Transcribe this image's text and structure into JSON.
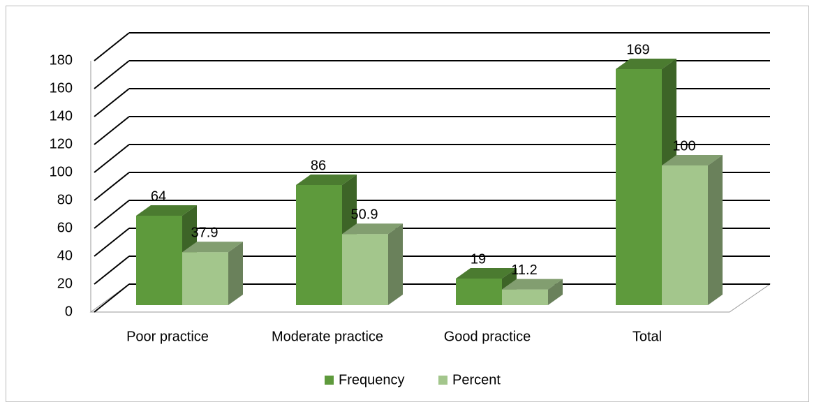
{
  "chart_data": {
    "type": "bar3d",
    "categories": [
      "Poor practice",
      "Moderate practice",
      "Good practice",
      "Total"
    ],
    "series": [
      {
        "name": "Frequency",
        "color": "#5e9a3c",
        "values": [
          64,
          86,
          19,
          169
        ]
      },
      {
        "name": "Percent",
        "color": "#a3c68c",
        "values": [
          37.9,
          50.9,
          11.2,
          100
        ]
      }
    ],
    "ylim": [
      0,
      180
    ],
    "yticks": [
      0,
      20,
      40,
      60,
      80,
      100,
      120,
      140,
      160,
      180
    ],
    "grid": true,
    "legend": "bottom",
    "data_labels": true
  }
}
